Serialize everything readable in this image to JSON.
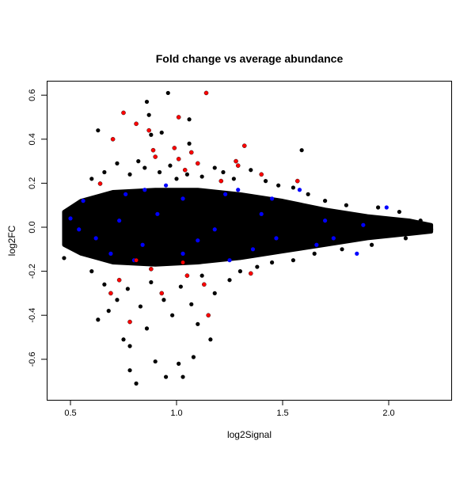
{
  "chart_data": {
    "type": "scatter",
    "title": "Fold change vs average abundance",
    "xlabel": "log2Signal",
    "ylabel": "log2FC",
    "xlim": [
      0.4,
      2.3
    ],
    "ylim": [
      -0.75,
      0.66
    ],
    "x_ticks": [
      "0.5",
      "1.0",
      "1.5",
      "2.0"
    ],
    "y_ticks": [
      "-0.6",
      "-0.4",
      "-0.2",
      "0.0",
      "0.2",
      "0.4",
      "0.6"
    ],
    "grid": false,
    "legend": "none",
    "colors": {
      "default": "#000000",
      "red": "#ff0000",
      "blue": "#0000ff"
    },
    "dense_region": {
      "x": [
        0.47,
        0.55,
        0.7,
        0.9,
        1.1,
        1.3,
        1.5,
        1.7,
        1.9,
        2.1,
        2.2
      ],
      "upper": [
        0.07,
        0.12,
        0.16,
        0.17,
        0.17,
        0.15,
        0.12,
        0.08,
        0.05,
        0.03,
        0.01
      ],
      "lower": [
        -0.08,
        -0.12,
        -0.16,
        -0.17,
        -0.16,
        -0.14,
        -0.11,
        -0.08,
        -0.05,
        -0.03,
        -0.02
      ]
    },
    "series": [
      {
        "color": "black",
        "points": [
          [
            0.96,
            0.61
          ],
          [
            0.86,
            0.57
          ],
          [
            0.87,
            0.51
          ],
          [
            0.63,
            0.44
          ],
          [
            0.88,
            0.42
          ],
          [
            1.06,
            0.38
          ],
          [
            1.06,
            0.49
          ],
          [
            1.59,
            0.35
          ],
          [
            0.93,
            0.43
          ],
          [
            0.95,
            -0.68
          ],
          [
            0.81,
            -0.71
          ],
          [
            0.78,
            -0.65
          ],
          [
            1.03,
            -0.68
          ],
          [
            1.01,
            -0.62
          ],
          [
            0.9,
            -0.61
          ],
          [
            0.75,
            -0.51
          ],
          [
            1.16,
            -0.51
          ],
          [
            0.63,
            -0.42
          ],
          [
            0.47,
            -0.14
          ],
          [
            2.2,
            -0.01
          ],
          [
            0.78,
            -0.54
          ],
          [
            1.08,
            -0.59
          ],
          [
            0.6,
            0.22
          ],
          [
            0.66,
            0.25
          ],
          [
            0.72,
            0.29
          ],
          [
            0.78,
            0.24
          ],
          [
            0.82,
            0.3
          ],
          [
            0.85,
            0.27
          ],
          [
            0.92,
            0.25
          ],
          [
            0.97,
            0.28
          ],
          [
            1.0,
            0.22
          ],
          [
            1.05,
            0.24
          ],
          [
            1.12,
            0.23
          ],
          [
            1.18,
            0.27
          ],
          [
            1.22,
            0.25
          ],
          [
            1.27,
            0.22
          ],
          [
            1.35,
            0.26
          ],
          [
            1.42,
            0.21
          ],
          [
            1.48,
            0.19
          ],
          [
            1.55,
            0.18
          ],
          [
            1.62,
            0.15
          ],
          [
            1.7,
            0.12
          ],
          [
            1.8,
            0.1
          ],
          [
            1.95,
            0.09
          ],
          [
            2.05,
            0.07
          ],
          [
            2.15,
            0.03
          ],
          [
            0.6,
            -0.2
          ],
          [
            0.66,
            -0.26
          ],
          [
            0.72,
            -0.33
          ],
          [
            0.77,
            -0.28
          ],
          [
            0.83,
            -0.36
          ],
          [
            0.88,
            -0.25
          ],
          [
            0.94,
            -0.33
          ],
          [
            0.98,
            -0.4
          ],
          [
            1.02,
            -0.27
          ],
          [
            1.07,
            -0.35
          ],
          [
            1.12,
            -0.22
          ],
          [
            1.18,
            -0.3
          ],
          [
            1.25,
            -0.24
          ],
          [
            1.3,
            -0.2
          ],
          [
            1.38,
            -0.18
          ],
          [
            1.45,
            -0.16
          ],
          [
            1.55,
            -0.15
          ],
          [
            1.65,
            -0.12
          ],
          [
            1.78,
            -0.1
          ],
          [
            1.92,
            -0.08
          ],
          [
            2.08,
            -0.05
          ],
          [
            0.68,
            -0.38
          ],
          [
            0.86,
            -0.46
          ],
          [
            1.1,
            -0.44
          ]
        ]
      },
      {
        "color": "blue",
        "points": [
          [
            0.56,
            0.12
          ],
          [
            0.5,
            0.04
          ],
          [
            0.76,
            0.15
          ],
          [
            0.85,
            0.17
          ],
          [
            0.95,
            0.19
          ],
          [
            1.03,
            0.13
          ],
          [
            1.23,
            0.15
          ],
          [
            1.29,
            0.17
          ],
          [
            1.45,
            0.13
          ],
          [
            1.58,
            0.17
          ],
          [
            1.7,
            0.03
          ],
          [
            1.85,
            -0.12
          ],
          [
            1.99,
            0.09
          ],
          [
            0.62,
            -0.05
          ],
          [
            0.84,
            -0.08
          ],
          [
            1.1,
            -0.06
          ],
          [
            1.36,
            -0.1
          ],
          [
            0.91,
            0.06
          ],
          [
            0.69,
            -0.12
          ],
          [
            1.18,
            -0.01
          ],
          [
            1.47,
            -0.05
          ],
          [
            1.66,
            -0.08
          ],
          [
            0.54,
            -0.01
          ],
          [
            1.03,
            -0.12
          ],
          [
            1.25,
            -0.15
          ],
          [
            0.8,
            -0.15
          ],
          [
            1.4,
            0.06
          ],
          [
            1.74,
            -0.05
          ],
          [
            1.88,
            0.01
          ],
          [
            0.73,
            0.03
          ]
        ]
      },
      {
        "color": "red",
        "points": [
          [
            0.64,
            0.198
          ],
          [
            0.75,
            0.52
          ],
          [
            0.7,
            0.4
          ],
          [
            0.81,
            0.47
          ],
          [
            0.87,
            0.44
          ],
          [
            0.89,
            0.35
          ],
          [
            0.9,
            0.32
          ],
          [
            0.99,
            0.36
          ],
          [
            1.01,
            0.5
          ],
          [
            1.14,
            0.61
          ],
          [
            1.01,
            0.31
          ],
          [
            1.04,
            0.26
          ],
          [
            1.1,
            0.29
          ],
          [
            1.07,
            0.34
          ],
          [
            1.28,
            0.3
          ],
          [
            1.32,
            0.37
          ],
          [
            1.21,
            0.21
          ],
          [
            1.29,
            0.28
          ],
          [
            1.4,
            0.24
          ],
          [
            1.57,
            0.21
          ],
          [
            0.88,
            -0.19
          ],
          [
            0.78,
            -0.43
          ],
          [
            0.73,
            -0.24
          ],
          [
            0.93,
            -0.3
          ],
          [
            1.05,
            -0.22
          ],
          [
            1.15,
            -0.4
          ],
          [
            1.35,
            -0.21
          ],
          [
            0.81,
            -0.15
          ],
          [
            1.03,
            -0.16
          ],
          [
            0.69,
            -0.3
          ],
          [
            1.13,
            -0.26
          ]
        ]
      }
    ]
  }
}
